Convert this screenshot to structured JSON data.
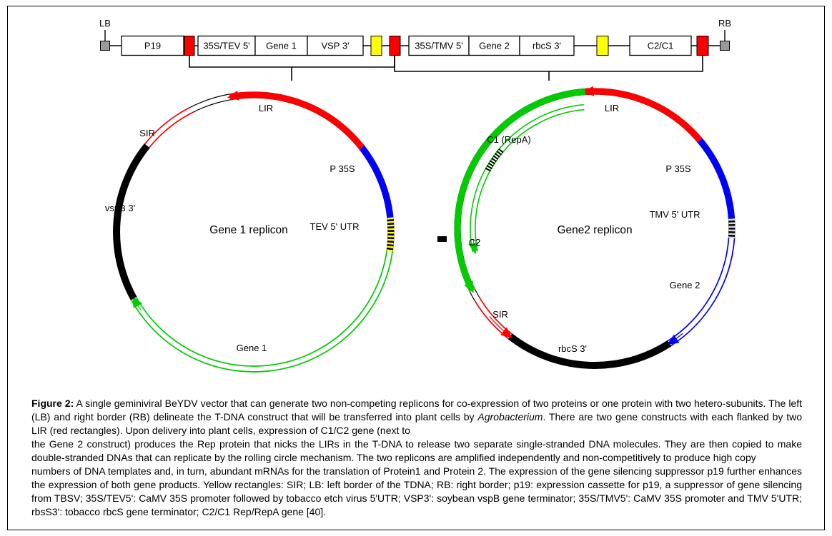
{
  "colors": {
    "lir_red": "#ff0000",
    "sir_yellow": "#ffff00",
    "border_gray": "#9a9a9a",
    "promoter_blue": "#0000ff",
    "gene_green": "#00cc00",
    "terminator_black": "#000000",
    "hatch_yellow": "#ffff00",
    "hatch_gray": "#d8d8d8"
  },
  "construct": {
    "lb": "LB",
    "rb": "RB",
    "p19": "P19",
    "p35s_tev": "35S/TEV 5'",
    "gene1": "Gene 1",
    "vsp3": "VSP 3'",
    "p35s_tmv": "35S/TMV 5'",
    "gene2": "Gene 2",
    "rbcs3": "rbcS 3'",
    "c2c1": "C2/C1"
  },
  "left_replicon": {
    "title": "Gene 1 replicon",
    "lir": "LIR",
    "p35s": "P 35S",
    "tev_utr": "TEV 5' UTR",
    "gene1": "Gene 1",
    "vspb3": "vspB 3'",
    "sir": "SIR"
  },
  "right_replicon": {
    "title": "Gene2 replicon",
    "c1_repa": "C1 (RepA)",
    "lir": "LIR",
    "p35s": "P 35S",
    "tmv_utr": "TMV 5' UTR",
    "gene2": "Gene 2",
    "rbcs3": "rbcS 3'",
    "sir": "SIR",
    "c2": "C2"
  },
  "caption": {
    "paragraphs": [
      {
        "segments": [
          {
            "style": "bold",
            "text": "Figure 2:"
          },
          {
            "style": "normal",
            "text": " A single geminiviral BeYDV vector that can generate two non-competing replicons for co-expression of two proteins or one protein with two hetero-subunits. The left (LB) and right border (RB) delineate the T-DNA construct that will be transferred into plant cells by "
          },
          {
            "style": "italic",
            "text": "Agrobacterium"
          },
          {
            "style": "normal",
            "text": ". There are two gene constructs with each flanked by two LIR (red rectangles). Upon delivery into plant cells, expression of C1/C2 gene (next to"
          }
        ]
      },
      {
        "segments": [
          {
            "style": "normal",
            "text": "the Gene 2 construct) produces the Rep protein that nicks the LIRs in the T-DNA to release two separate single-stranded DNA molecules. They are then copied to make double-stranded DNAs that can replicate by the rolling circle mechanism. The two replicons are amplified independently and non-competitively to produce high copy"
          }
        ]
      },
      {
        "segments": [
          {
            "style": "normal",
            "text": "numbers of DNA templates and, in turn, abundant mRNAs for the translation of Protein1 and Protein 2. The expression of the gene silencing suppressor p19 further enhances the expression of both gene products. Yellow rectangles: SIR; LB: left border of the TDNA; RB: right border; p19: expression cassette for p19, a suppressor of gene silencing from TBSV; 35S/TEV5': CaMV 35S promoter followed by tobacco etch virus 5'UTR; VSP3': soybean vspB gene terminator; 35S/TMV5': CaMV 35S promoter and TMV 5'UTR; rbsS3': tobacco rbcS gene terminator; C2/C1 Rep/RepA gene [40]."
          }
        ]
      }
    ]
  }
}
